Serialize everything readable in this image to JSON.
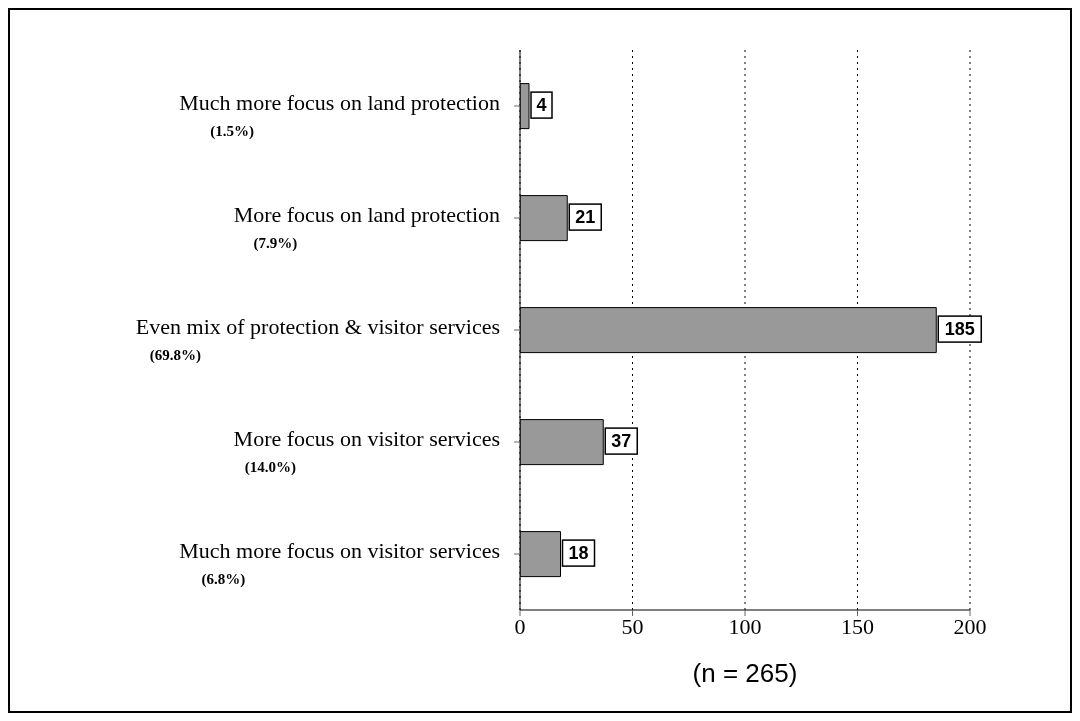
{
  "chart_data": {
    "type": "bar",
    "orientation": "horizontal",
    "categories": [
      "Much more focus on land protection\n(1.5%)",
      "More focus on land protection\n(7.9%)",
      "Even mix of protection & visitor services\n(69.8%)",
      "More focus on visitor services\n(14.0%)",
      "Much more focus on visitor services\n(6.8%)"
    ],
    "values": [
      4,
      21,
      185,
      37,
      18
    ],
    "color": "#999999",
    "xlim": [
      0,
      200
    ],
    "xticks": [
      0,
      50,
      100,
      150,
      200
    ],
    "xlabel": "(n = 265)",
    "grid": "x",
    "data_labels": true
  }
}
